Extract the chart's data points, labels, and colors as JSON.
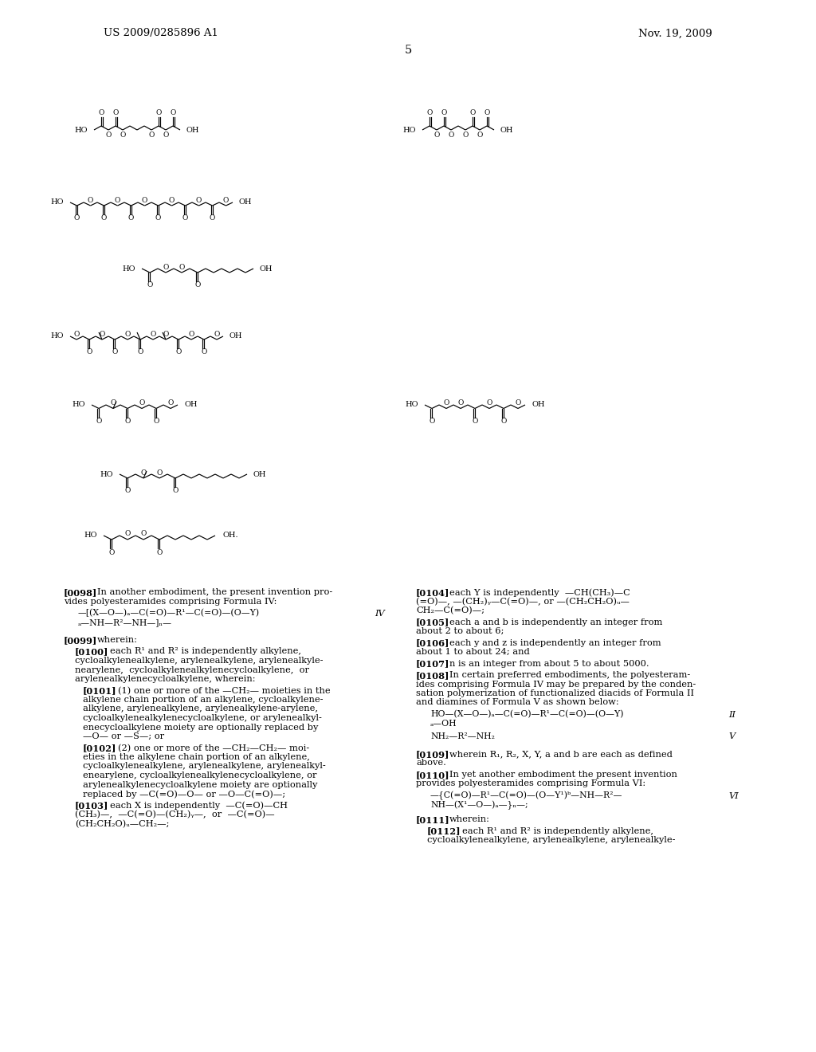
{
  "header_left": "US 2009/0285896 A1",
  "header_right": "Nov. 19, 2009",
  "page_number": "5",
  "bg": "#ffffff",
  "tc": "#000000"
}
